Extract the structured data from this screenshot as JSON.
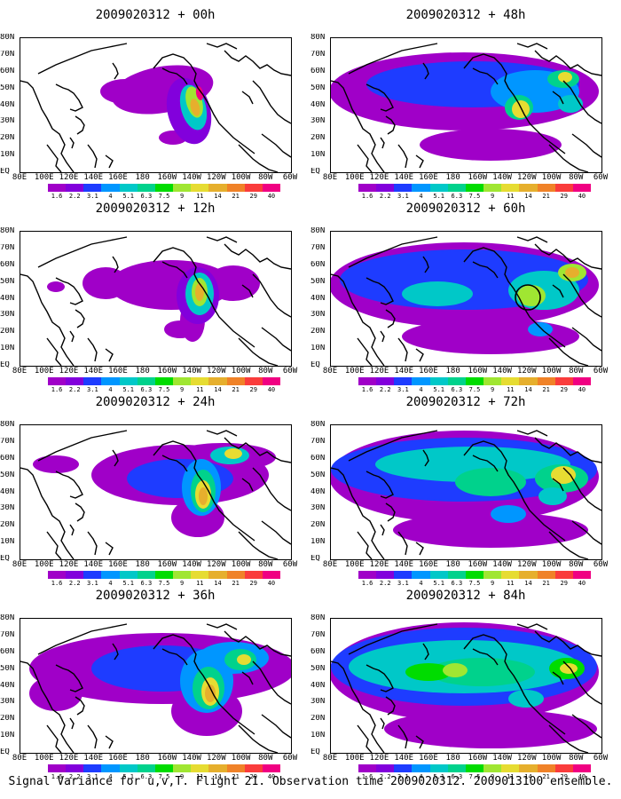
{
  "panels": [
    {
      "title": "2009020312 + 00h"
    },
    {
      "title": "2009020312 + 48h"
    },
    {
      "title": "2009020312 + 12h"
    },
    {
      "title": "2009020312 + 60h"
    },
    {
      "title": "2009020312 + 24h"
    },
    {
      "title": "2009020312 + 72h"
    },
    {
      "title": "2009020312 + 36h"
    },
    {
      "title": "2009020312 + 84h"
    }
  ],
  "y_labels": [
    "80N",
    "70N",
    "60N",
    "50N",
    "40N",
    "30N",
    "20N",
    "10N",
    "EQ"
  ],
  "x_labels": [
    "80E",
    "100E",
    "120E",
    "140E",
    "160E",
    "180",
    "160W",
    "140W",
    "120W",
    "100W",
    "80W",
    "60W"
  ],
  "colorbar": {
    "labels": [
      "1.6",
      "2.2",
      "3.1",
      "4",
      "5.1",
      "6.3",
      "7.5",
      "9",
      "11",
      "14",
      "21",
      "29",
      "40"
    ],
    "colors": [
      "#a000c8",
      "#8200dc",
      "#1e3cff",
      "#0096ff",
      "#00c8c8",
      "#00d28c",
      "#00dc00",
      "#a0e632",
      "#e6dc32",
      "#e6af2d",
      "#f08228",
      "#fa3c3c",
      "#f00082"
    ]
  },
  "caption": "Signal Variance for u,v,T. Flight 21. Observation time 2009020312. 2009013100 ensemble."
}
